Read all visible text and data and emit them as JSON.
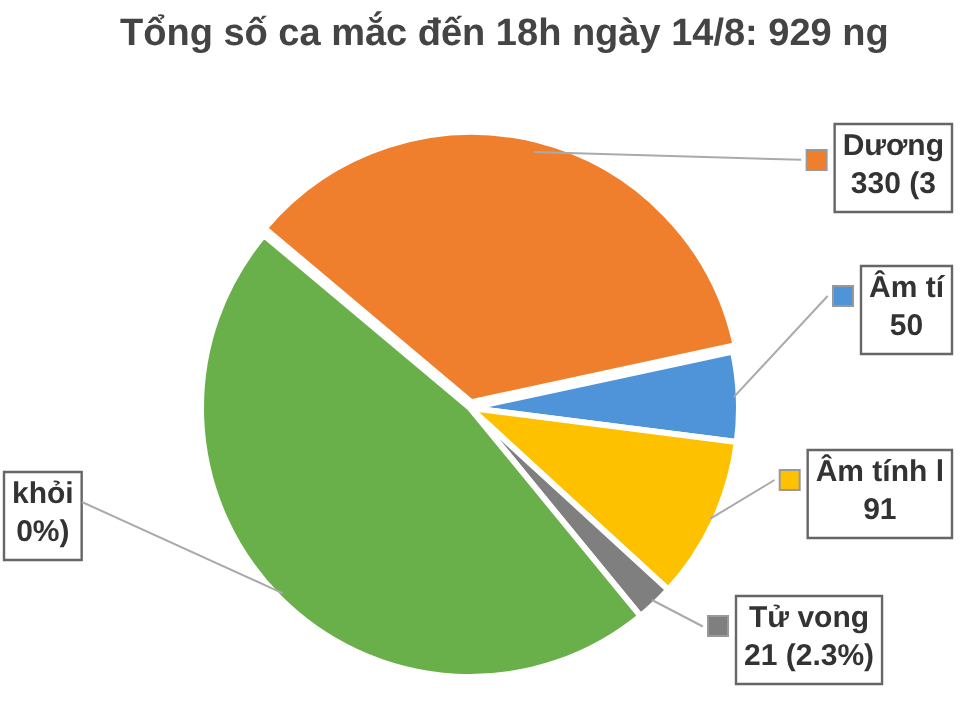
{
  "chart_data": {
    "type": "pie",
    "title": "Tổng số ca mắc đến 18h ngày 14/8: 929 ng",
    "categories": [
      "Dương",
      "Âm tí",
      "Âm tính l",
      "Tử vong",
      "khỏi"
    ],
    "values": [
      330,
      50,
      91,
      21,
      437
    ],
    "value_labels": [
      "330 (3",
      "50",
      "91",
      "21 (2.3%)",
      null
    ],
    "annotations": [
      "0%)"
    ],
    "colors": [
      "#f07f2d",
      "#4f94d8",
      "#fec100",
      "#7f7f7f",
      "#6ab04a"
    ],
    "legend": "right"
  }
}
